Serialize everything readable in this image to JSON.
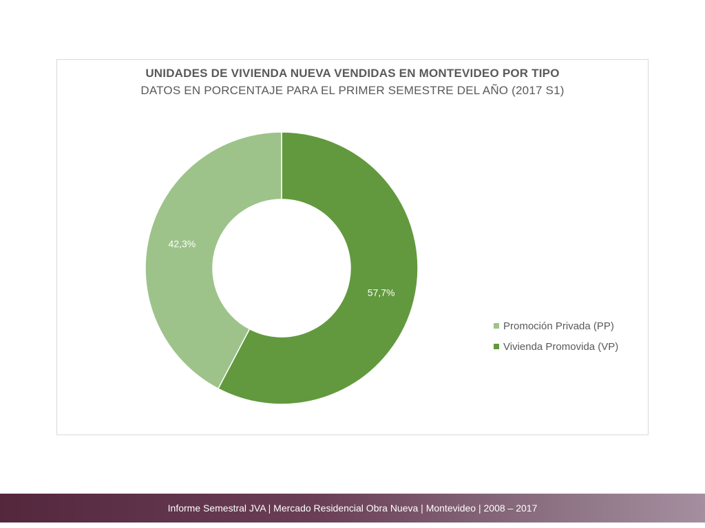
{
  "chart_data": {
    "type": "pie",
    "title": "UNIDADES DE VIVIENDA NUEVA VENDIDAS EN MONTEVIDEO POR TIPO",
    "subtitle": "DATOS EN PORCENTAJE PARA EL PRIMER SEMESTRE DEL AÑO (2017 S1)",
    "donut": true,
    "categories": [
      "Promoción Privada (PP)",
      "Vivienda Promovida (VP)"
    ],
    "values": [
      42.3,
      57.7
    ],
    "data_labels": [
      "42,3%",
      "57,7%"
    ],
    "colors": [
      "#9dc38a",
      "#62993e"
    ],
    "legend_position": "right"
  },
  "footer": {
    "text": "Informe Semestral JVA | Mercado Residencial Obra Nueva | Montevideo | 2008 – 2017"
  }
}
